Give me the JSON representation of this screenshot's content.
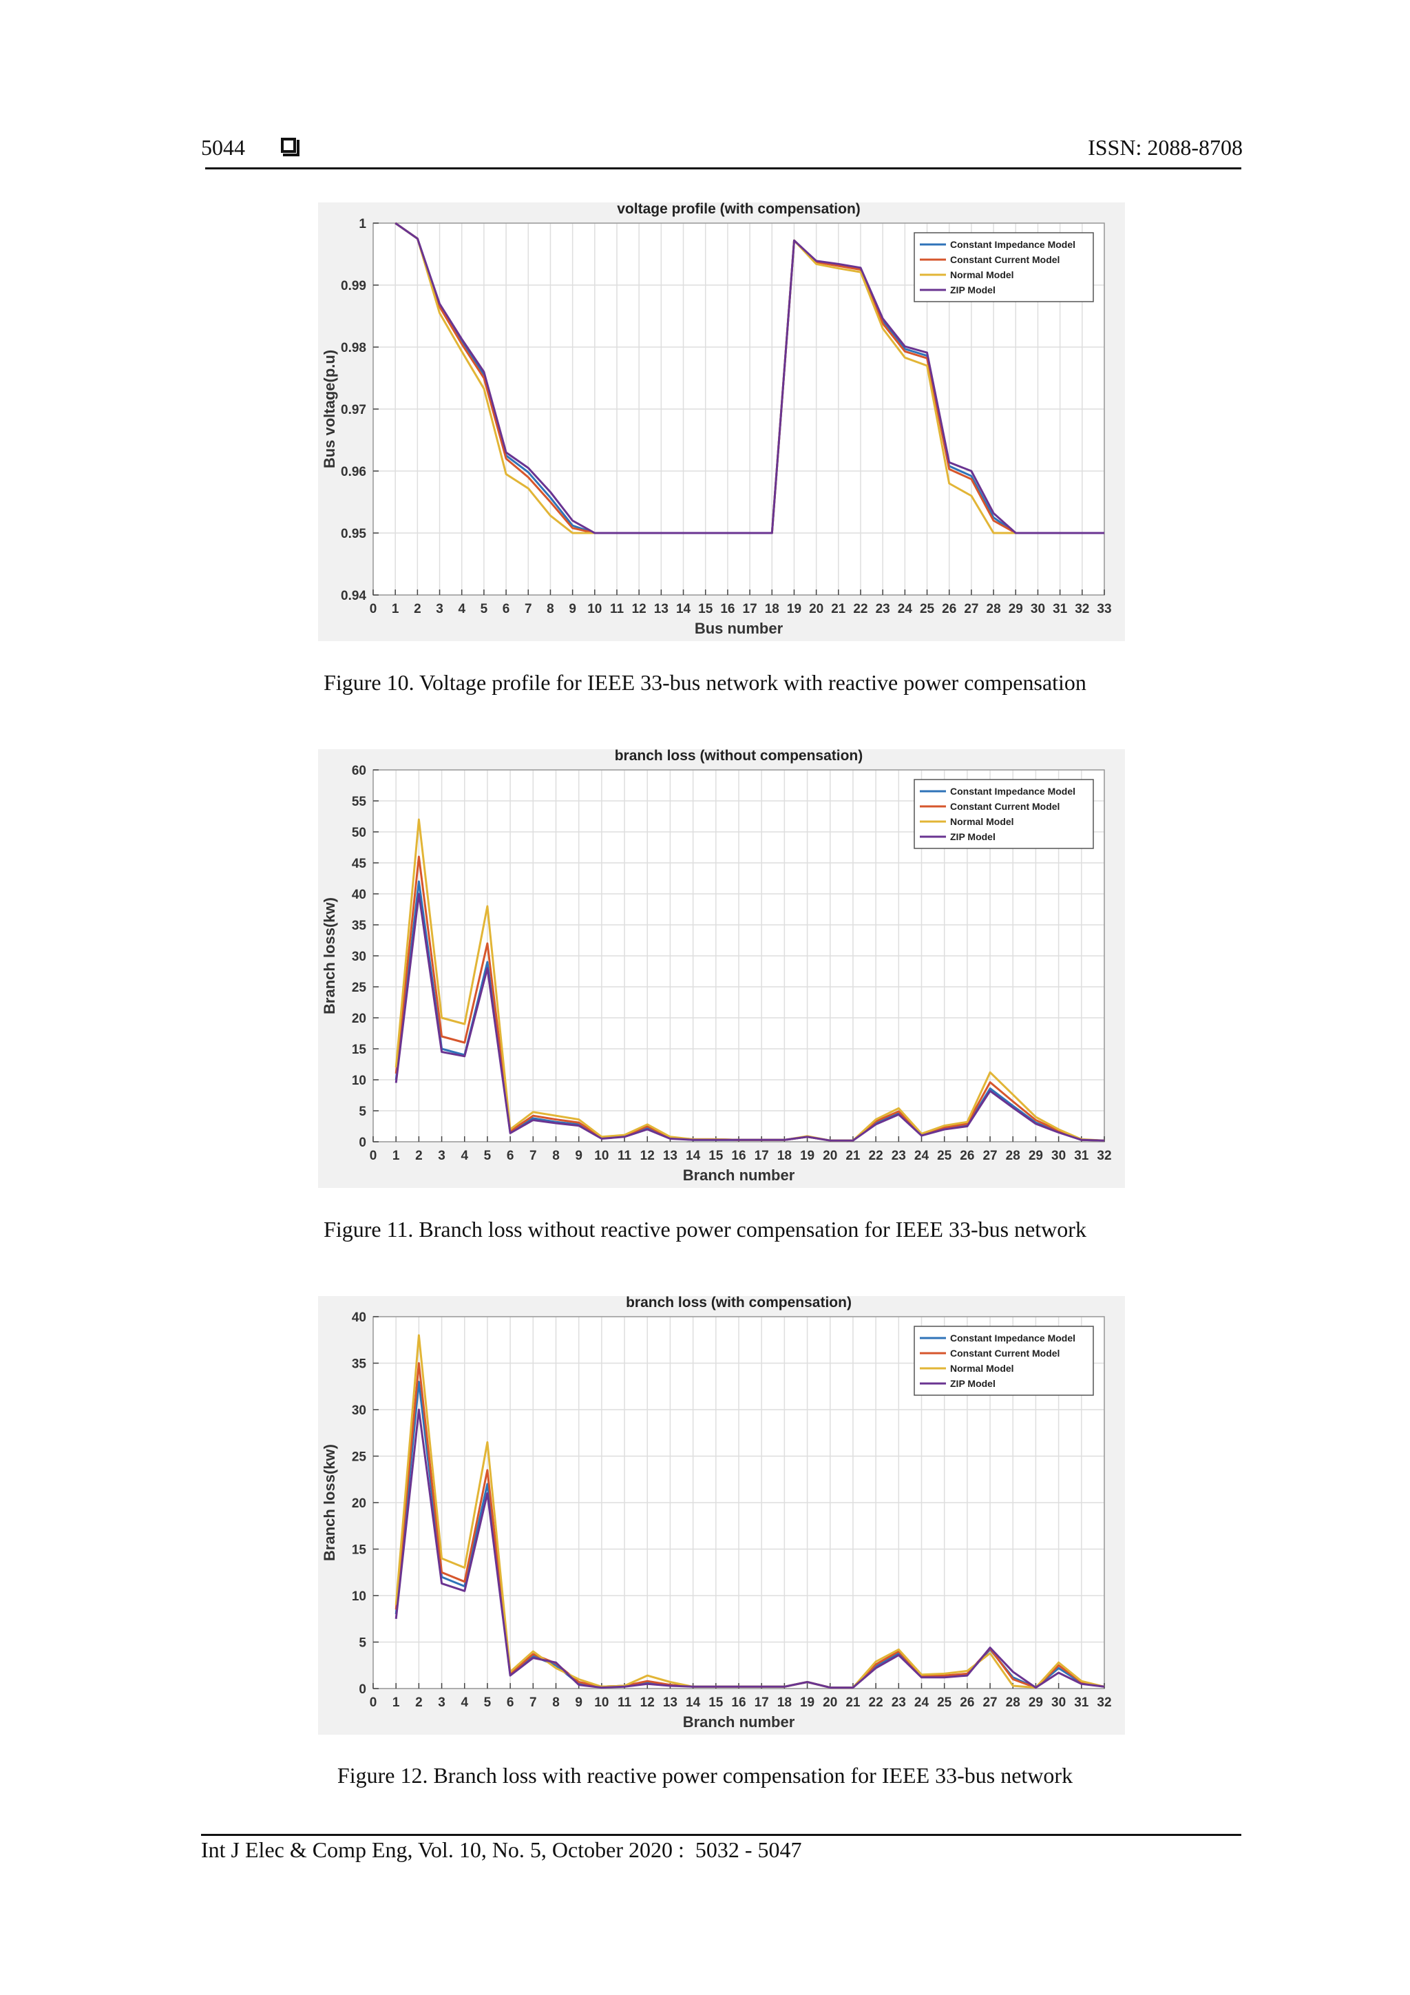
{
  "header": {
    "page_number": "5044",
    "issn": "ISSN: 2088-8708"
  },
  "figures": [
    {
      "caption": "Figure 10. Voltage profile for IEEE 33-bus network with reactive power compensation",
      "chart_data": {
        "type": "line",
        "title": "voltage profile (with compensation)",
        "xlabel": "Bus number",
        "ylabel": "Bus voltage(p.u)",
        "xlim": [
          0,
          33
        ],
        "ylim": [
          0.94,
          1.0
        ],
        "yticks": [
          0.94,
          0.95,
          0.96,
          0.97,
          0.98,
          0.99,
          1
        ],
        "ytick_labels": [
          "0.94",
          "0.95",
          "0.96",
          "0.97",
          "0.98",
          "0.99",
          "1"
        ],
        "grid": true,
        "legend_position": "top-right",
        "x": [
          1,
          2,
          3,
          4,
          5,
          6,
          7,
          8,
          9,
          10,
          11,
          12,
          13,
          14,
          15,
          16,
          17,
          18,
          19,
          20,
          21,
          22,
          23,
          24,
          25,
          26,
          27,
          28,
          29,
          30,
          31,
          32,
          33
        ],
        "series": [
          {
            "name": "Constant Impedance Model",
            "color": "#2f73b8",
            "values": [
              1,
              0.9975,
              0.9868,
              0.981,
              0.9755,
              0.9625,
              0.9598,
              0.9557,
              0.9512,
              0.95,
              0.95,
              0.95,
              0.95,
              0.95,
              0.95,
              0.95,
              0.95,
              0.95,
              0.9972,
              0.9938,
              0.9933,
              0.9927,
              0.9842,
              0.9797,
              0.9786,
              0.9608,
              0.9592,
              0.9525,
              0.95,
              0.95,
              0.95,
              0.95,
              0.95
            ]
          },
          {
            "name": "Constant Current Model",
            "color": "#d6562c",
            "values": [
              1,
              0.9975,
              0.9865,
              0.9805,
              0.975,
              0.962,
              0.959,
              0.955,
              0.9508,
              0.95,
              0.95,
              0.95,
              0.95,
              0.95,
              0.95,
              0.95,
              0.95,
              0.95,
              0.9972,
              0.9937,
              0.9931,
              0.9925,
              0.9838,
              0.9793,
              0.9782,
              0.9603,
              0.9587,
              0.952,
              0.95,
              0.95,
              0.95,
              0.95,
              0.95
            ]
          },
          {
            "name": "Normal Model",
            "color": "#e2b536",
            "values": [
              1,
              0.9975,
              0.9855,
              0.9793,
              0.9733,
              0.9595,
              0.9572,
              0.9528,
              0.95,
              0.95,
              0.95,
              0.95,
              0.95,
              0.95,
              0.95,
              0.95,
              0.95,
              0.95,
              0.9972,
              0.9934,
              0.9927,
              0.9921,
              0.983,
              0.9783,
              0.977,
              0.958,
              0.956,
              0.95,
              0.95,
              0.95,
              0.95,
              0.95,
              0.95
            ]
          },
          {
            "name": "ZIP Model",
            "color": "#6a3491",
            "values": [
              1,
              0.9975,
              0.987,
              0.9813,
              0.976,
              0.963,
              0.9605,
              0.9566,
              0.952,
              0.95,
              0.95,
              0.95,
              0.95,
              0.95,
              0.95,
              0.95,
              0.95,
              0.95,
              0.9972,
              0.9939,
              0.9934,
              0.9928,
              0.9846,
              0.9801,
              0.9791,
              0.9614,
              0.96,
              0.9532,
              0.95,
              0.95,
              0.95,
              0.95,
              0.95
            ]
          }
        ]
      }
    },
    {
      "caption": "Figure 11. Branch loss without reactive power compensation for IEEE 33-bus network",
      "chart_data": {
        "type": "line",
        "title": "branch loss (without compensation)",
        "xlabel": "Branch number",
        "ylabel": "Branch loss(kw)",
        "xlim": [
          0,
          32
        ],
        "ylim": [
          0,
          60
        ],
        "yticks": [
          0,
          5,
          10,
          15,
          20,
          25,
          30,
          35,
          40,
          45,
          50,
          55,
          60
        ],
        "ytick_labels": [
          "0",
          "5",
          "10",
          "15",
          "20",
          "25",
          "30",
          "35",
          "40",
          "45",
          "50",
          "55",
          "60"
        ],
        "grid": true,
        "legend_position": "top-right",
        "x": [
          1,
          2,
          3,
          4,
          5,
          6,
          7,
          8,
          9,
          10,
          11,
          12,
          13,
          14,
          15,
          16,
          17,
          18,
          19,
          20,
          21,
          22,
          23,
          24,
          25,
          26,
          27,
          28,
          29,
          30,
          31,
          32
        ],
        "series": [
          {
            "name": "Constant Impedance Model",
            "color": "#2f73b8",
            "values": [
              10,
              42,
              15,
              14,
              29,
              1.5,
              3.8,
              3.2,
              2.8,
              0.6,
              0.9,
              2.2,
              0.6,
              0.3,
              0.3,
              0.3,
              0.3,
              0.3,
              0.8,
              0.2,
              0.2,
              3,
              4.6,
              1.1,
              2.1,
              2.6,
              8.6,
              5.8,
              3.1,
              1.6,
              0.3,
              0.2
            ]
          },
          {
            "name": "Constant Current Model",
            "color": "#d6562c",
            "values": [
              11,
              46,
              17,
              16,
              32,
              1.7,
              4.2,
              3.6,
              3.1,
              0.7,
              1,
              2.5,
              0.7,
              0.4,
              0.4,
              0.3,
              0.3,
              0.3,
              0.8,
              0.2,
              0.2,
              3.3,
              4.9,
              1.2,
              2.3,
              2.9,
              9.6,
              6.5,
              3.5,
              1.8,
              0.3,
              0.2
            ]
          },
          {
            "name": "Normal Model",
            "color": "#e2b536",
            "values": [
              12,
              52,
              20,
              19,
              38,
              2,
              4.8,
              4.2,
              3.6,
              0.8,
              1.1,
              2.8,
              0.8,
              0.4,
              0.4,
              0.3,
              0.3,
              0.3,
              0.9,
              0.2,
              0.2,
              3.6,
              5.4,
              1.3,
              2.6,
              3.2,
              11.2,
              7.6,
              4,
              2,
              0.4,
              0.2
            ]
          },
          {
            "name": "ZIP Model",
            "color": "#6a3491",
            "values": [
              9.5,
              40,
              14.5,
              13.8,
              28,
              1.4,
              3.5,
              3,
              2.6,
              0.5,
              0.8,
              2,
              0.5,
              0.3,
              0.3,
              0.3,
              0.3,
              0.3,
              0.8,
              0.2,
              0.2,
              2.8,
              4.4,
              1,
              2,
              2.5,
              8.2,
              5.5,
              2.9,
              1.5,
              0.3,
              0.2
            ]
          }
        ]
      }
    },
    {
      "caption": "Figure 12. Branch loss with reactive power compensation for IEEE 33-bus network",
      "chart_data": {
        "type": "line",
        "title": "branch loss (with compensation)",
        "xlabel": "Branch number",
        "ylabel": "Branch loss(kw)",
        "xlim": [
          0,
          32
        ],
        "ylim": [
          0,
          40
        ],
        "yticks": [
          0,
          5,
          10,
          15,
          20,
          25,
          30,
          35,
          40
        ],
        "ytick_labels": [
          "0",
          "5",
          "10",
          "15",
          "20",
          "25",
          "30",
          "35",
          "40"
        ],
        "grid": true,
        "legend_position": "top-right",
        "x": [
          1,
          2,
          3,
          4,
          5,
          6,
          7,
          8,
          9,
          10,
          11,
          12,
          13,
          14,
          15,
          16,
          17,
          18,
          19,
          20,
          21,
          22,
          23,
          24,
          25,
          26,
          27,
          28,
          29,
          30,
          31,
          32
        ],
        "series": [
          {
            "name": "Constant Impedance Model",
            "color": "#2f73b8",
            "values": [
              8,
              33,
              12,
              11,
              22,
              1.5,
              3.5,
              2.5,
              0.5,
              0.2,
              0.3,
              0.6,
              0.4,
              0.2,
              0.2,
              0.2,
              0.2,
              0.2,
              0.7,
              0.1,
              0.1,
              2.4,
              3.8,
              1.3,
              1.3,
              1.5,
              4.2,
              1.2,
              0.1,
              2.2,
              0.6,
              0.2
            ]
          },
          {
            "name": "Constant Current Model",
            "color": "#d6562c",
            "values": [
              8.5,
              35,
              12.5,
              11.5,
              23.5,
              1.6,
              3.7,
              2.7,
              0.7,
              0.2,
              0.3,
              0.8,
              0.4,
              0.2,
              0.2,
              0.2,
              0.2,
              0.2,
              0.7,
              0.1,
              0.1,
              2.6,
              4,
              1.4,
              1.4,
              1.6,
              4.3,
              1,
              0.1,
              2.5,
              0.7,
              0.2
            ]
          },
          {
            "name": "Normal Model",
            "color": "#e2b536",
            "values": [
              9,
              38,
              14,
              13,
              26.5,
              1.8,
              4,
              2.2,
              1,
              0.2,
              0.3,
              1.4,
              0.7,
              0.2,
              0.2,
              0.2,
              0.2,
              0.2,
              0.7,
              0.1,
              0.1,
              2.9,
              4.2,
              1.5,
              1.6,
              1.9,
              3.8,
              0.3,
              0.1,
              2.8,
              0.8,
              0.2
            ]
          },
          {
            "name": "ZIP Model",
            "color": "#6a3491",
            "values": [
              7.5,
              30,
              11.3,
              10.5,
              21,
              1.4,
              3.3,
              2.8,
              0.4,
              0.1,
              0.2,
              0.5,
              0.3,
              0.2,
              0.2,
              0.2,
              0.2,
              0.2,
              0.7,
              0.1,
              0.1,
              2.2,
              3.6,
              1.2,
              1.2,
              1.4,
              4.4,
              1.8,
              0.1,
              1.7,
              0.5,
              0.2
            ]
          }
        ]
      }
    }
  ],
  "footer": {
    "citation": "Int J Elec & Comp Eng, Vol. 10, No. 5, October 2020 :  5032 - 5047"
  }
}
